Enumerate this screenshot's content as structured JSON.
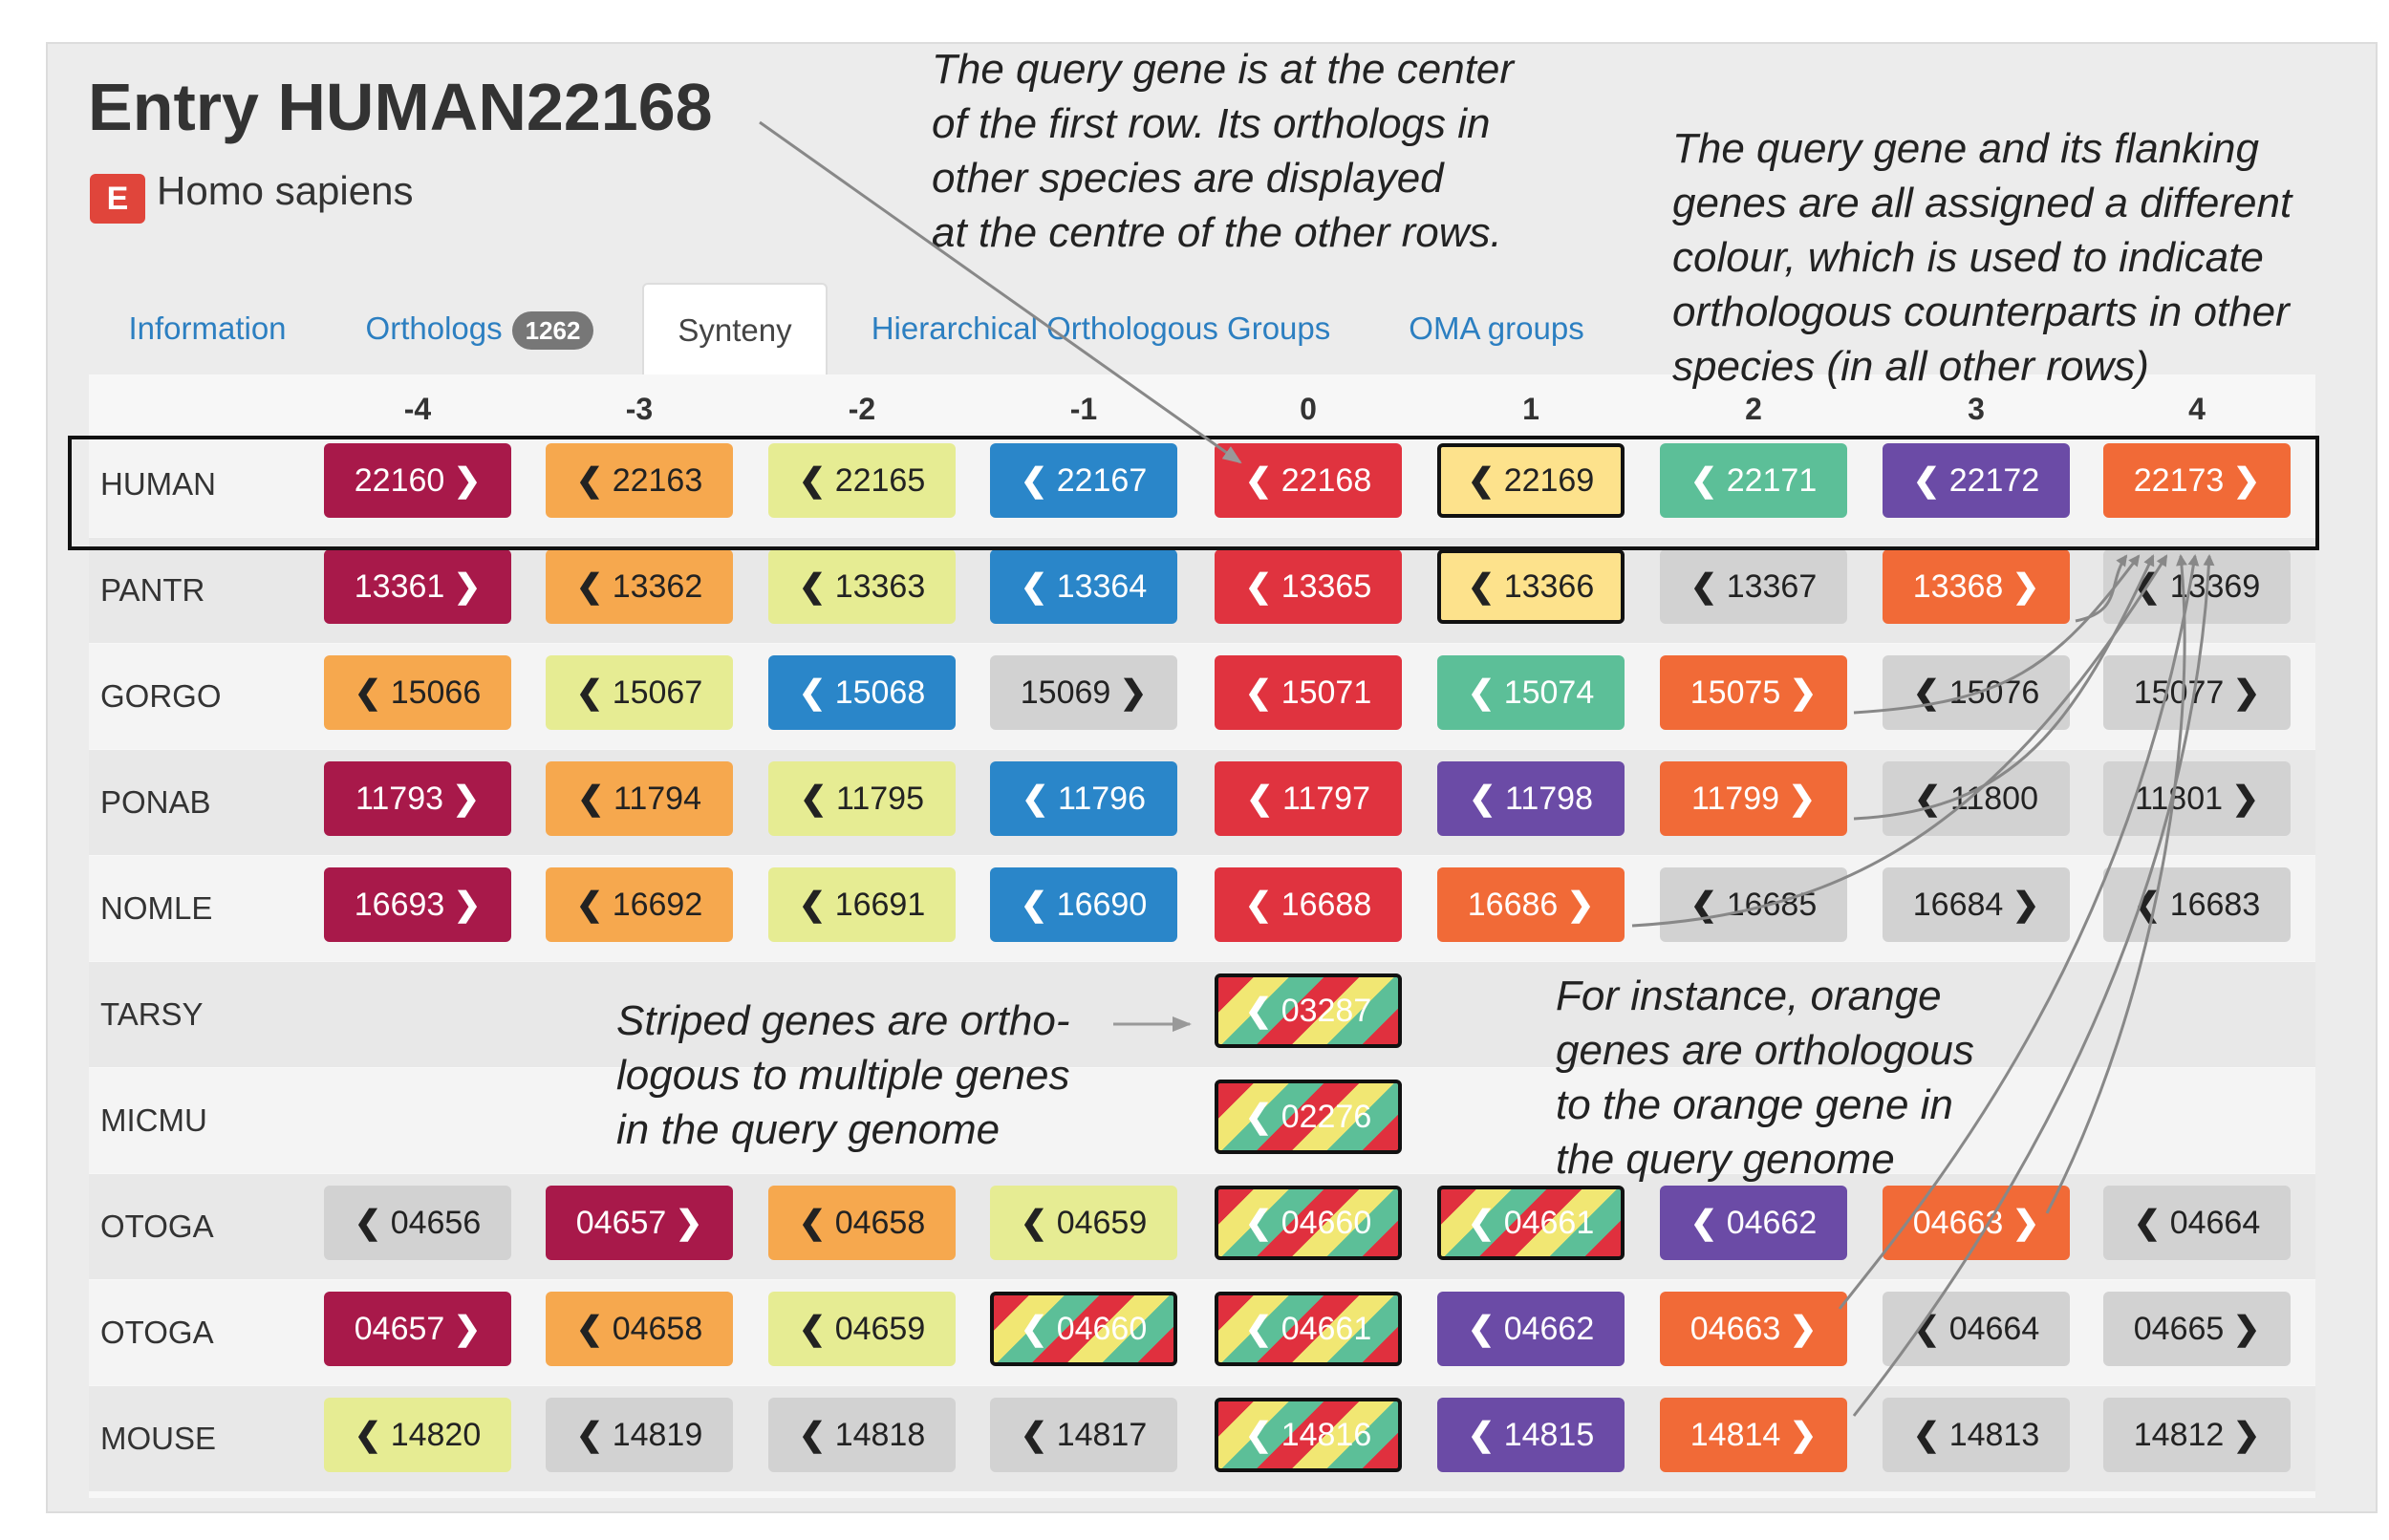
{
  "header": {
    "title": "Entry HUMAN22168",
    "species_badge": "E",
    "species_name": "Homo sapiens"
  },
  "tabs": [
    {
      "label": "Information",
      "active": false
    },
    {
      "label": "Orthologs",
      "badge": "1262",
      "active": false
    },
    {
      "label": "Synteny",
      "active": true
    },
    {
      "label": "Hierarchical Orthologous Groups",
      "active": false
    },
    {
      "label": "OMA groups",
      "active": false
    }
  ],
  "columns": [
    "-4",
    "-3",
    "-2",
    "-1",
    "0",
    "1",
    "2",
    "3",
    "4"
  ],
  "colors": {
    "maroon": "#a8194a",
    "orange": "#f6a84e",
    "lightyellow": "#e6ec93",
    "blue": "#2a86c9",
    "red": "#e0333f",
    "paleyellow": "#fde28c",
    "teal": "#5cbf98",
    "purple": "#6b4ba6",
    "orangered": "#f16a37",
    "gray": "#d2d2d2"
  },
  "rows": [
    {
      "species": "HUMAN",
      "genes": [
        {
          "id": "22160",
          "dir": "right",
          "color": "maroon"
        },
        {
          "id": "22163",
          "dir": "left",
          "color": "orange"
        },
        {
          "id": "22165",
          "dir": "left",
          "color": "lightyellow"
        },
        {
          "id": "22167",
          "dir": "left",
          "color": "blue"
        },
        {
          "id": "22168",
          "dir": "left",
          "color": "red"
        },
        {
          "id": "22169",
          "dir": "left",
          "color": "paleyellow",
          "outlined": true
        },
        {
          "id": "22171",
          "dir": "left",
          "color": "teal"
        },
        {
          "id": "22172",
          "dir": "left",
          "color": "purple"
        },
        {
          "id": "22173",
          "dir": "right",
          "color": "orangered"
        }
      ]
    },
    {
      "species": "PANTR",
      "genes": [
        {
          "id": "13361",
          "dir": "right",
          "color": "maroon"
        },
        {
          "id": "13362",
          "dir": "left",
          "color": "orange"
        },
        {
          "id": "13363",
          "dir": "left",
          "color": "lightyellow"
        },
        {
          "id": "13364",
          "dir": "left",
          "color": "blue"
        },
        {
          "id": "13365",
          "dir": "left",
          "color": "red"
        },
        {
          "id": "13366",
          "dir": "left",
          "color": "paleyellow",
          "outlined": true
        },
        {
          "id": "13367",
          "dir": "left",
          "color": "gray"
        },
        {
          "id": "13368",
          "dir": "right",
          "color": "orangered"
        },
        {
          "id": "13369",
          "dir": "left",
          "color": "gray"
        }
      ]
    },
    {
      "species": "GORGO",
      "genes": [
        {
          "id": "15066",
          "dir": "left",
          "color": "orange"
        },
        {
          "id": "15067",
          "dir": "left",
          "color": "lightyellow"
        },
        {
          "id": "15068",
          "dir": "left",
          "color": "blue"
        },
        {
          "id": "15069",
          "dir": "right",
          "color": "gray"
        },
        {
          "id": "15071",
          "dir": "left",
          "color": "red"
        },
        {
          "id": "15074",
          "dir": "left",
          "color": "teal"
        },
        {
          "id": "15075",
          "dir": "right",
          "color": "orangered"
        },
        {
          "id": "15076",
          "dir": "left",
          "color": "gray"
        },
        {
          "id": "15077",
          "dir": "right",
          "color": "gray"
        }
      ]
    },
    {
      "species": "PONAB",
      "genes": [
        {
          "id": "11793",
          "dir": "right",
          "color": "maroon"
        },
        {
          "id": "11794",
          "dir": "left",
          "color": "orange"
        },
        {
          "id": "11795",
          "dir": "left",
          "color": "lightyellow"
        },
        {
          "id": "11796",
          "dir": "left",
          "color": "blue"
        },
        {
          "id": "11797",
          "dir": "left",
          "color": "red"
        },
        {
          "id": "11798",
          "dir": "left",
          "color": "purple"
        },
        {
          "id": "11799",
          "dir": "right",
          "color": "orangered"
        },
        {
          "id": "11800",
          "dir": "left",
          "color": "gray"
        },
        {
          "id": "11801",
          "dir": "right",
          "color": "gray"
        }
      ]
    },
    {
      "species": "NOMLE",
      "genes": [
        {
          "id": "16693",
          "dir": "right",
          "color": "maroon"
        },
        {
          "id": "16692",
          "dir": "left",
          "color": "orange"
        },
        {
          "id": "16691",
          "dir": "left",
          "color": "lightyellow"
        },
        {
          "id": "16690",
          "dir": "left",
          "color": "blue"
        },
        {
          "id": "16688",
          "dir": "left",
          "color": "red"
        },
        {
          "id": "16686",
          "dir": "right",
          "color": "orangered"
        },
        {
          "id": "16685",
          "dir": "left",
          "color": "gray"
        },
        {
          "id": "16684",
          "dir": "right",
          "color": "gray"
        },
        {
          "id": "16683",
          "dir": "left",
          "color": "gray"
        }
      ]
    },
    {
      "species": "TARSY",
      "genes": [
        null,
        null,
        null,
        null,
        {
          "id": "03287",
          "dir": "left",
          "striped": true
        },
        null,
        null,
        null,
        null
      ]
    },
    {
      "species": "MICMU",
      "genes": [
        null,
        null,
        null,
        null,
        {
          "id": "02276",
          "dir": "left",
          "striped": true
        },
        null,
        null,
        null,
        null
      ]
    },
    {
      "species": "OTOGA",
      "genes": [
        {
          "id": "04656",
          "dir": "left",
          "color": "gray"
        },
        {
          "id": "04657",
          "dir": "right",
          "color": "maroon"
        },
        {
          "id": "04658",
          "dir": "left",
          "color": "orange"
        },
        {
          "id": "04659",
          "dir": "left",
          "color": "lightyellow"
        },
        {
          "id": "04660",
          "dir": "left",
          "striped": true
        },
        {
          "id": "04661",
          "dir": "left",
          "striped": true
        },
        {
          "id": "04662",
          "dir": "left",
          "color": "purple"
        },
        {
          "id": "04663",
          "dir": "right",
          "color": "orangered"
        },
        {
          "id": "04664",
          "dir": "left",
          "color": "gray"
        }
      ]
    },
    {
      "species": "OTOGA",
      "genes": [
        {
          "id": "04657",
          "dir": "right",
          "color": "maroon"
        },
        {
          "id": "04658",
          "dir": "left",
          "color": "orange"
        },
        {
          "id": "04659",
          "dir": "left",
          "color": "lightyellow"
        },
        {
          "id": "04660",
          "dir": "left",
          "striped": true
        },
        {
          "id": "04661",
          "dir": "left",
          "striped": true
        },
        {
          "id": "04662",
          "dir": "left",
          "color": "purple"
        },
        {
          "id": "04663",
          "dir": "right",
          "color": "orangered"
        },
        {
          "id": "04664",
          "dir": "left",
          "color": "gray"
        },
        {
          "id": "04665",
          "dir": "right",
          "color": "gray"
        }
      ]
    },
    {
      "species": "MOUSE",
      "genes": [
        {
          "id": "14820",
          "dir": "left",
          "color": "lightyellow"
        },
        {
          "id": "14819",
          "dir": "left",
          "color": "gray"
        },
        {
          "id": "14818",
          "dir": "left",
          "color": "gray"
        },
        {
          "id": "14817",
          "dir": "left",
          "color": "gray"
        },
        {
          "id": "14816",
          "dir": "left",
          "striped": true
        },
        {
          "id": "14815",
          "dir": "left",
          "color": "purple"
        },
        {
          "id": "14814",
          "dir": "right",
          "color": "orangered"
        },
        {
          "id": "14813",
          "dir": "left",
          "color": "gray"
        },
        {
          "id": "14812",
          "dir": "right",
          "color": "gray"
        }
      ]
    }
  ],
  "annotations": {
    "query_center": [
      "The query gene is at the center",
      "of the first row. Its orthologs in",
      "other species are displayed",
      "at the centre of the other rows."
    ],
    "flanking_colours": [
      "The query gene and its flanking",
      "genes are all assigned a different",
      "colour, which is used to indicate",
      "orthologous counterparts in other",
      "species (in all other rows)"
    ],
    "striped": [
      "Striped genes are ortho-",
      "logous to multiple genes",
      "in the query genome"
    ],
    "orange_example": [
      "For instance, orange",
      "genes are orthologous",
      "to the orange gene in",
      "the query genome"
    ]
  }
}
